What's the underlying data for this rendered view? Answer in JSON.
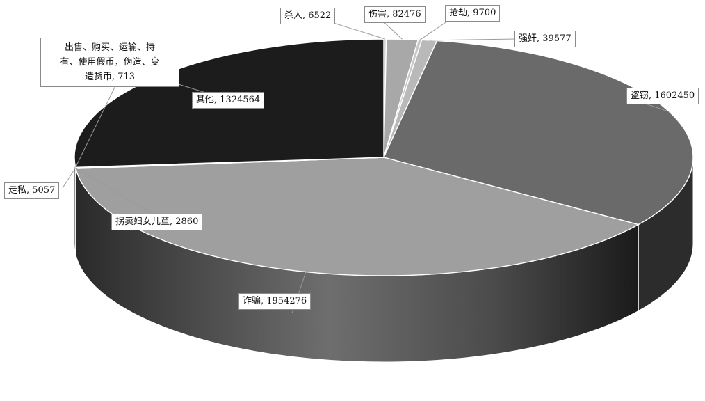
{
  "chart_data": {
    "type": "pie",
    "style": "3d",
    "legend": "none",
    "label_format": "category, value",
    "slices": [
      {
        "label": "杀人",
        "value": 6522,
        "color": "#d4d4d4"
      },
      {
        "label": "伤害",
        "value": 82476,
        "color": "#a8a8a8"
      },
      {
        "label": "抢劫",
        "value": 9700,
        "color": "#c9c9c9"
      },
      {
        "label": "强奸",
        "value": 39577,
        "color": "#b9b9b9"
      },
      {
        "label": "盗窃",
        "value": 1602450,
        "color": "#6a6a6a"
      },
      {
        "label": "诈骗",
        "value": 1954276,
        "color": "#9f9f9f"
      },
      {
        "label": "拐卖妇女儿童",
        "value": 2860,
        "color": "#d8d8d8"
      },
      {
        "label": "走私",
        "value": 5057,
        "color": "#cfcfcf"
      },
      {
        "label": "出售、购买、运输、持有、使用假币，伪造、变造货币",
        "value": 713,
        "color": "#e0e0e0"
      },
      {
        "label": "其他",
        "value": 1324564,
        "color": "#1c1c1c"
      }
    ]
  },
  "labels": [
    {
      "lines": [
        "杀人, 6522"
      ]
    },
    {
      "lines": [
        "伤害, 82476"
      ]
    },
    {
      "lines": [
        "抢劫, 9700"
      ]
    },
    {
      "lines": [
        "强奸, 39577"
      ]
    },
    {
      "lines": [
        "盗窃, 1602450"
      ]
    },
    {
      "lines": [
        "诈骗, 1954276"
      ]
    },
    {
      "lines": [
        "拐卖妇女儿童, 2860"
      ]
    },
    {
      "lines": [
        "走私, 5057"
      ]
    },
    {
      "lines": [
        "出售、购买、运输、持",
        "有、使用假币，伪造、变",
        "造货币, 713"
      ]
    },
    {
      "lines": [
        "其他, 1324564"
      ]
    }
  ]
}
